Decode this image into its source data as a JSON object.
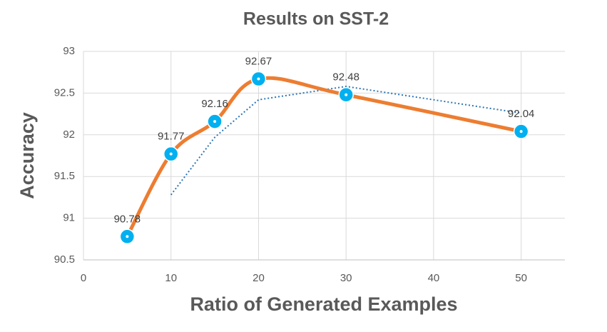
{
  "chart_data": {
    "type": "line",
    "title": "Results on SST-2",
    "x_label": "Ratio of Generated Examples",
    "y_label": "Accuracy",
    "x": [
      5,
      10,
      15,
      20,
      30,
      50
    ],
    "values": [
      90.78,
      91.77,
      92.16,
      92.67,
      92.48,
      92.04
    ],
    "color": "#ed7d31",
    "marker_color": "#00b0f0",
    "smooth": true,
    "trendline": {
      "values": [
        null,
        91.28,
        91.97,
        92.42,
        92.58,
        92.26
      ],
      "color": "#2e75b6",
      "dotted": true
    },
    "xlim": [
      0,
      55
    ],
    "xticks": [
      0,
      10,
      20,
      30,
      40,
      50
    ],
    "ylim": [
      90.5,
      93
    ],
    "yticks": [
      90.5,
      91,
      91.5,
      92,
      92.5,
      93
    ],
    "grid": true
  }
}
